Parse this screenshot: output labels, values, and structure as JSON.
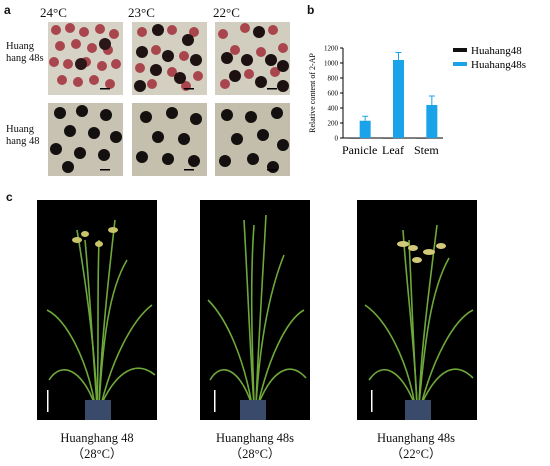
{
  "panel_a": {
    "letter": "a",
    "temperatures": [
      "24°C",
      "23°C",
      "22°C"
    ],
    "row_labels": [
      [
        "Huang",
        "hang 48s"
      ],
      [
        "Huang",
        "hang 48"
      ]
    ]
  },
  "panel_b": {
    "letter": "b",
    "legend": [
      "Huahang48",
      "Huahang48s"
    ],
    "legend_colors": [
      "#111111",
      "#1aa3e8"
    ]
  },
  "panel_c": {
    "letter": "c",
    "captions": [
      {
        "name": "Huanghang 48",
        "temp": "（28°C）"
      },
      {
        "name": "Huanghang 48s",
        "temp": "（28°C）"
      },
      {
        "name": "Huanghang 48s",
        "temp": "（22°C）"
      }
    ]
  },
  "chart_data": {
    "type": "bar",
    "categories": [
      "Panicle",
      "Leaf",
      "Stem"
    ],
    "ylabel": "Relative content of 2-AP",
    "ylim": [
      0,
      1200
    ],
    "yticks": [
      0,
      200,
      400,
      600,
      800,
      1000,
      1200
    ],
    "series": [
      {
        "name": "Huahang48",
        "values": [
          5,
          5,
          5
        ],
        "errors": [
          0,
          0,
          0
        ],
        "color": "#111111"
      },
      {
        "name": "Huahang48s",
        "values": [
          230,
          1040,
          440
        ],
        "errors": [
          60,
          100,
          120
        ],
        "color": "#1aa3e8"
      }
    ]
  }
}
